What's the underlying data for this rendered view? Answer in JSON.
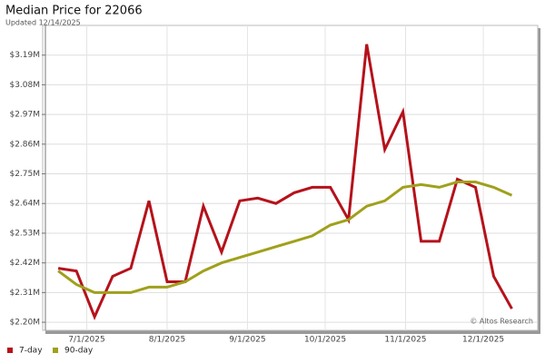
{
  "chart_data": {
    "type": "line",
    "title": "Median Price for 22066",
    "subtitle": "Updated 12/14/2025",
    "annotation": "© Altos Research",
    "x": [
      "2025-06-20",
      "2025-06-27",
      "2025-07-04",
      "2025-07-11",
      "2025-07-18",
      "2025-07-25",
      "2025-08-01",
      "2025-08-08",
      "2025-08-15",
      "2025-08-22",
      "2025-08-29",
      "2025-09-05",
      "2025-09-12",
      "2025-09-19",
      "2025-09-26",
      "2025-10-03",
      "2025-10-10",
      "2025-10-17",
      "2025-10-24",
      "2025-10-31",
      "2025-11-07",
      "2025-11-14",
      "2025-11-21",
      "2025-11-28",
      "2025-12-05",
      "2025-12-12"
    ],
    "series": [
      {
        "name": "7-day",
        "color": "#b5121b",
        "values": [
          2.4,
          2.39,
          2.22,
          2.37,
          2.4,
          2.65,
          2.35,
          2.35,
          2.63,
          2.46,
          2.65,
          2.66,
          2.64,
          2.68,
          2.7,
          2.7,
          2.58,
          3.23,
          2.84,
          2.98,
          2.5,
          2.5,
          2.73,
          2.7,
          2.37,
          2.25
        ]
      },
      {
        "name": "90-day",
        "color": "#a0a01c",
        "values": [
          2.39,
          2.34,
          2.31,
          2.31,
          2.31,
          2.33,
          2.33,
          2.35,
          2.39,
          2.42,
          2.44,
          2.46,
          2.48,
          2.5,
          2.52,
          2.56,
          2.58,
          2.63,
          2.65,
          2.7,
          2.71,
          2.7,
          2.72,
          2.72,
          2.7,
          2.67
        ]
      }
    ],
    "xlim": [
      "2025-06-14",
      "2025-12-22"
    ],
    "xticks": [
      {
        "value": "2025-07-01",
        "label": "7/1/2025"
      },
      {
        "value": "2025-08-01",
        "label": "8/1/2025"
      },
      {
        "value": "2025-09-01",
        "label": "9/1/2025"
      },
      {
        "value": "2025-10-01",
        "label": "10/1/2025"
      },
      {
        "value": "2025-11-01",
        "label": "11/1/2025"
      },
      {
        "value": "2025-12-01",
        "label": "12/1/2025"
      }
    ],
    "ylim": [
      2.17,
      3.3
    ],
    "yticks": [
      {
        "value": 2.2,
        "label": "$2.20M"
      },
      {
        "value": 2.31,
        "label": "$2.31M"
      },
      {
        "value": 2.42,
        "label": "$2.42M"
      },
      {
        "value": 2.53,
        "label": "$2.53M"
      },
      {
        "value": 2.64,
        "label": "$2.64M"
      },
      {
        "value": 2.75,
        "label": "$2.75M"
      },
      {
        "value": 2.86,
        "label": "$2.86M"
      },
      {
        "value": 2.97,
        "label": "$2.97M"
      },
      {
        "value": 3.08,
        "label": "$3.08M"
      },
      {
        "value": 3.19,
        "label": "$3.19M"
      }
    ],
    "grid": true,
    "legend": "bottom-left"
  }
}
